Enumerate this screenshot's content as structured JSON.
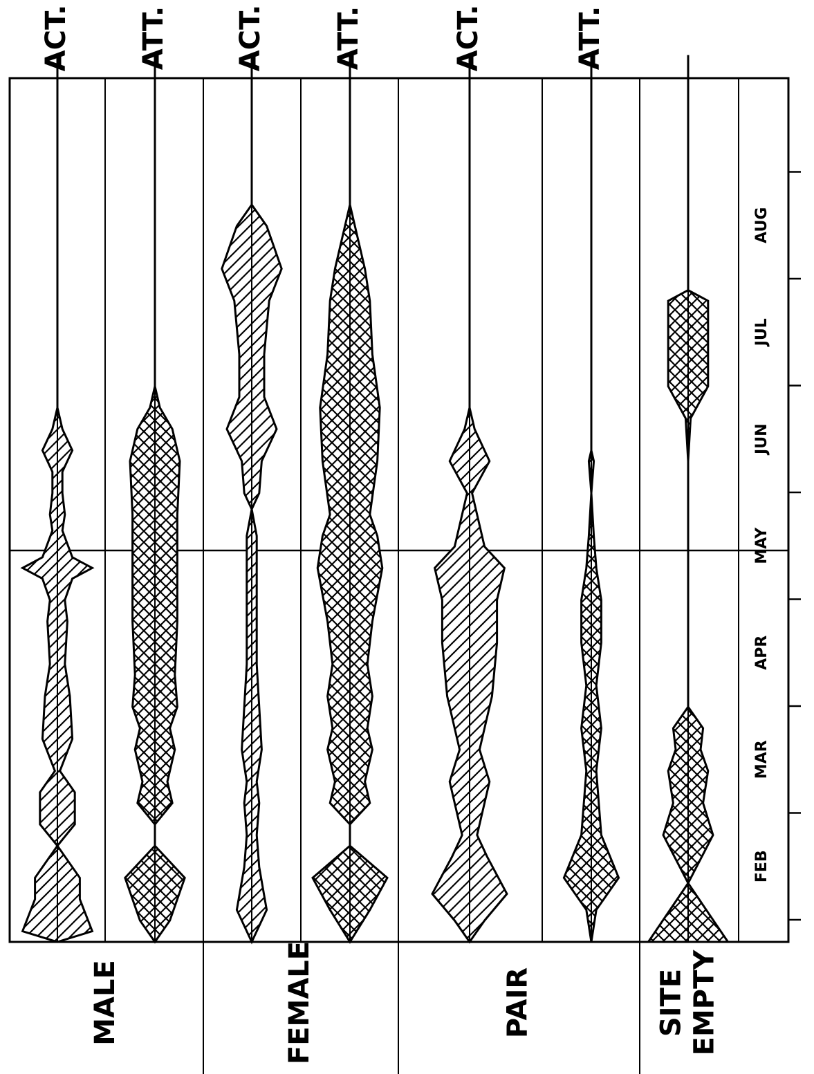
{
  "chart_data": {
    "type": "area",
    "subtype": "kite-diagram",
    "orientation": "rotated-90-ccw",
    "x_axis": {
      "unit": "month",
      "range": [
        "late Jan",
        "end Aug"
      ],
      "tick_labels": [
        "FEB",
        "MAR",
        "APR",
        "MAY",
        "JUN",
        "JUL",
        "AUG"
      ]
    },
    "groups": [
      {
        "label": "MALE",
        "label_lines": [
          "MALE"
        ]
      },
      {
        "label": "FEMALE",
        "label_lines": [
          "FEMALE"
        ]
      },
      {
        "label": "PAIR",
        "label_lines": [
          "PAIR"
        ]
      },
      {
        "label": "SITE EMPTY",
        "label_lines": [
          "SITE",
          "EMPTY"
        ]
      }
    ],
    "series": [
      {
        "group": "MALE",
        "label": "ACT.",
        "pattern": "hatched",
        "values": [
          [
            0,
            0.0
          ],
          [
            0.1,
            0.7
          ],
          [
            0.4,
            0.45
          ],
          [
            0.6,
            0.45
          ],
          [
            0.9,
            0.0
          ],
          [
            1.1,
            0.35
          ],
          [
            1.4,
            0.35
          ],
          [
            1.6,
            0.05
          ],
          [
            1.9,
            0.3
          ],
          [
            2.3,
            0.25
          ],
          [
            2.6,
            0.15
          ],
          [
            3.0,
            0.2
          ],
          [
            3.2,
            0.15
          ],
          [
            3.4,
            0.3
          ],
          [
            3.5,
            0.7
          ],
          [
            3.6,
            0.3
          ],
          [
            3.85,
            0.1
          ],
          [
            4.0,
            0.15
          ],
          [
            4.2,
            0.1
          ],
          [
            4.4,
            0.1
          ],
          [
            4.6,
            0.3
          ],
          [
            4.8,
            0.1
          ],
          [
            5.0,
            0.0
          ],
          [
            5.2,
            0.0
          ],
          [
            8.3,
            0.0
          ]
        ]
      },
      {
        "group": "MALE",
        "label": "ATT.",
        "pattern": "crosshatched",
        "values": [
          [
            0,
            0.0
          ],
          [
            0.2,
            0.3
          ],
          [
            0.6,
            0.6
          ],
          [
            0.9,
            0.0
          ],
          [
            1.1,
            0.0
          ],
          [
            1.3,
            0.35
          ],
          [
            1.5,
            0.25
          ],
          [
            1.8,
            0.4
          ],
          [
            2.0,
            0.3
          ],
          [
            2.2,
            0.45
          ],
          [
            2.5,
            0.4
          ],
          [
            3.0,
            0.45
          ],
          [
            3.5,
            0.45
          ],
          [
            4.0,
            0.45
          ],
          [
            4.5,
            0.5
          ],
          [
            4.8,
            0.35
          ],
          [
            5.0,
            0.1
          ],
          [
            5.2,
            0.0
          ],
          [
            8.3,
            0.0
          ]
        ]
      },
      {
        "group": "FEMALE",
        "label": "ACT.",
        "pattern": "hatched",
        "values": [
          [
            0,
            0.0
          ],
          [
            0.3,
            0.3
          ],
          [
            0.7,
            0.15
          ],
          [
            1.0,
            0.1
          ],
          [
            1.3,
            0.15
          ],
          [
            1.5,
            0.1
          ],
          [
            1.8,
            0.2
          ],
          [
            2.2,
            0.15
          ],
          [
            2.6,
            0.1
          ],
          [
            3.0,
            0.1
          ],
          [
            3.5,
            0.1
          ],
          [
            3.8,
            0.1
          ],
          [
            4.05,
            0.0
          ],
          [
            4.2,
            0.15
          ],
          [
            4.5,
            0.2
          ],
          [
            4.8,
            0.5
          ],
          [
            5.1,
            0.25
          ],
          [
            5.5,
            0.25
          ],
          [
            6.0,
            0.35
          ],
          [
            6.3,
            0.6
          ],
          [
            6.7,
            0.3
          ],
          [
            6.9,
            0.0
          ],
          [
            8.3,
            0.0
          ]
        ]
      },
      {
        "group": "FEMALE",
        "label": "ATT.",
        "pattern": "crosshatched",
        "values": [
          [
            0,
            0.0
          ],
          [
            0.3,
            0.4
          ],
          [
            0.6,
            0.75
          ],
          [
            0.9,
            0.0
          ],
          [
            1.1,
            0.0
          ],
          [
            1.3,
            0.4
          ],
          [
            1.5,
            0.3
          ],
          [
            1.8,
            0.45
          ],
          [
            2.0,
            0.35
          ],
          [
            2.3,
            0.45
          ],
          [
            2.6,
            0.35
          ],
          [
            3.0,
            0.45
          ],
          [
            3.5,
            0.65
          ],
          [
            3.8,
            0.55
          ],
          [
            4.0,
            0.4
          ],
          [
            4.5,
            0.55
          ],
          [
            5.0,
            0.6
          ],
          [
            5.5,
            0.45
          ],
          [
            6.0,
            0.4
          ],
          [
            6.3,
            0.3
          ],
          [
            6.7,
            0.1
          ],
          [
            6.9,
            0.0
          ],
          [
            8.3,
            0.0
          ]
        ]
      },
      {
        "group": "PAIR",
        "label": "ACT.",
        "pattern": "hatched",
        "values": [
          [
            0,
            0.0
          ],
          [
            0.2,
            0.3
          ],
          [
            0.45,
            0.75
          ],
          [
            0.8,
            0.35
          ],
          [
            1.0,
            0.15
          ],
          [
            1.3,
            0.3
          ],
          [
            1.5,
            0.4
          ],
          [
            1.8,
            0.2
          ],
          [
            2.3,
            0.45
          ],
          [
            2.8,
            0.55
          ],
          [
            3.2,
            0.55
          ],
          [
            3.5,
            0.7
          ],
          [
            3.7,
            0.3
          ],
          [
            4.2,
            0.05
          ],
          [
            4.5,
            0.4
          ],
          [
            4.8,
            0.1
          ],
          [
            5.0,
            0.0
          ],
          [
            8.3,
            0.0
          ]
        ]
      },
      {
        "group": "PAIR",
        "label": "ATT.",
        "pattern": "crosshatched",
        "values": [
          [
            0,
            0.0
          ],
          [
            0.3,
            0.1
          ],
          [
            0.6,
            0.55
          ],
          [
            1.0,
            0.2
          ],
          [
            1.3,
            0.15
          ],
          [
            1.6,
            0.1
          ],
          [
            2.0,
            0.2
          ],
          [
            2.4,
            0.1
          ],
          [
            2.8,
            0.2
          ],
          [
            3.2,
            0.2
          ],
          [
            3.5,
            0.1
          ],
          [
            3.8,
            0.05
          ],
          [
            4.2,
            0.0
          ],
          [
            4.5,
            0.05
          ],
          [
            4.6,
            0.0
          ],
          [
            8.3,
            0.0
          ]
        ]
      },
      {
        "group": "SITE EMPTY",
        "label": "",
        "pattern": "crosshatched",
        "values": [
          [
            0,
            0.8
          ],
          [
            0.55,
            0.0
          ],
          [
            1.0,
            0.5
          ],
          [
            1.3,
            0.3
          ],
          [
            1.6,
            0.4
          ],
          [
            1.8,
            0.25
          ],
          [
            2.0,
            0.3
          ],
          [
            2.2,
            0.0
          ],
          [
            2.5,
            0.0
          ],
          [
            3.0,
            0.0
          ],
          [
            3.5,
            0.0
          ],
          [
            4.0,
            0.0
          ],
          [
            4.5,
            0.0
          ],
          [
            4.9,
            0.05
          ],
          [
            5.2,
            0.4
          ],
          [
            6.0,
            0.4
          ],
          [
            6.1,
            0.0
          ],
          [
            8.3,
            0.0
          ]
        ]
      }
    ]
  }
}
